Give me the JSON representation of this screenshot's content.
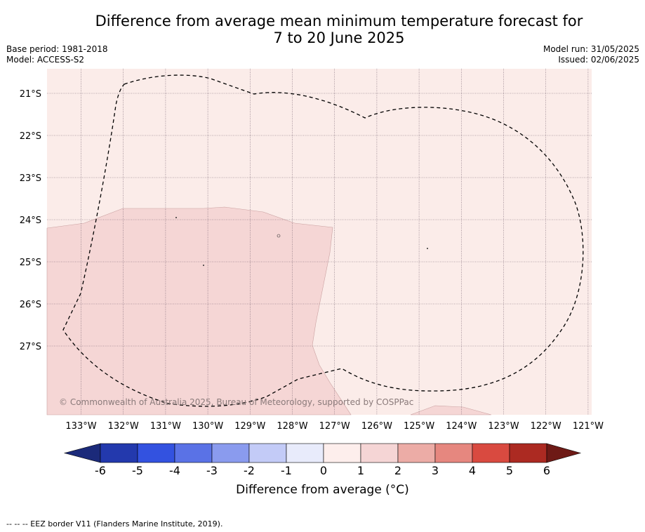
{
  "title_line1": "Difference from average mean minimum temperature forecast for",
  "title_line2": "7 to 20 June 2025",
  "base_period": "Base period: 1981-2018",
  "model": "Model: ACCESS-S2",
  "model_run": "Model run: 31/05/2025",
  "issued": "Issued: 02/06/2025",
  "copyright": "© Commonwealth of Australia 2025, Bureau of Meteorology, supported by COSPPac",
  "lat_labels": [
    "21°S",
    "22°S",
    "23°S",
    "24°S",
    "25°S",
    "26°S",
    "27°S"
  ],
  "lon_labels": [
    "133°W",
    "132°W",
    "131°W",
    "130°W",
    "129°W",
    "128°W",
    "127°W",
    "126°W",
    "125°W",
    "124°W",
    "123°W",
    "122°W",
    "121°W"
  ],
  "colorbar": {
    "ticks": [
      "-6",
      "-5",
      "-4",
      "-3",
      "-2",
      "-1",
      "0",
      "1",
      "2",
      "3",
      "4",
      "5",
      "6"
    ],
    "colors": [
      "#1b2a7a",
      "#2339ad",
      "#3352e0",
      "#5a72e6",
      "#8a9bee",
      "#c3cbf7",
      "#e8ebfb",
      "#fdeeec",
      "#f5d5d5",
      "#ecaca6",
      "#e6877f",
      "#d94a40",
      "#ac2a22",
      "#6e1a16"
    ],
    "label": "Difference from average (°C)"
  },
  "legend_footer": "-- -- -- EEZ border V11 (Flanders Marine Institute, 2019).",
  "map_colors": {
    "class_0_1": "#fbece9",
    "class_1_2": "#f5d6d5"
  }
}
